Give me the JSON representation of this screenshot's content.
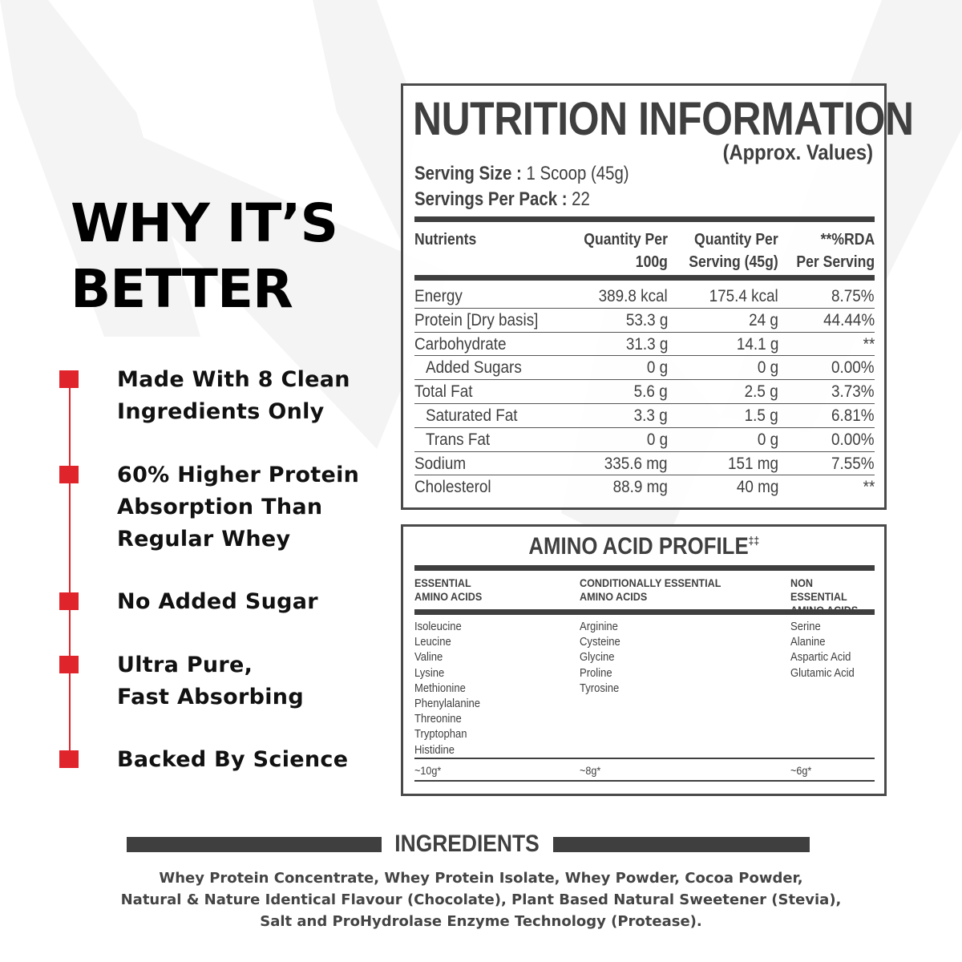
{
  "benefits_section": {
    "title": "WHY IT’S BETTER",
    "items": [
      {
        "text": "Made With 8 Clean\nIngredients Only"
      },
      {
        "text": "60% Higher Protein\nAbsorption Than\nRegular Whey"
      },
      {
        "text": "No Added Sugar"
      },
      {
        "text": "Ultra Pure,\nFast Absorbing"
      },
      {
        "text": "Backed By Science"
      }
    ],
    "accent_color": "#e0242c"
  },
  "nutrition": {
    "title": "NUTRITION INFORMATION",
    "subtitle": "(Approx. Values)",
    "serving_size_label": "Serving Size :",
    "serving_size_value": " 1 Scoop (45g)",
    "servings_per_pack_label": "Servings Per Pack :",
    "servings_per_pack_value": " 22",
    "columns": {
      "nutrients": "Nutrients",
      "per_100g": "Quantity Per\n100g",
      "per_serving": "Quantity Per\nServing (45g)",
      "rda": "**%RDA\nPer Serving"
    },
    "rows": [
      {
        "name": "Energy",
        "per_100g": "389.8 kcal",
        "per_serving": "175.4 kcal",
        "rda": "8.75%",
        "indent": false
      },
      {
        "name": "Protein [Dry basis]",
        "per_100g": "53.3 g",
        "per_serving": "24 g",
        "rda": "44.44%",
        "indent": false
      },
      {
        "name": "Carbohydrate",
        "per_100g": "31.3 g",
        "per_serving": "14.1 g",
        "rda": "**",
        "indent": false
      },
      {
        "name": "Added Sugars",
        "per_100g": "0 g",
        "per_serving": "0 g",
        "rda": "0.00%",
        "indent": true
      },
      {
        "name": "Total Fat",
        "per_100g": "5.6 g",
        "per_serving": "2.5 g",
        "rda": "3.73%",
        "indent": false
      },
      {
        "name": "Saturated Fat",
        "per_100g": "3.3 g",
        "per_serving": "1.5 g",
        "rda": "6.81%",
        "indent": true
      },
      {
        "name": "Trans Fat",
        "per_100g": "0 g",
        "per_serving": "0 g",
        "rda": "0.00%",
        "indent": true
      },
      {
        "name": "Sodium",
        "per_100g": "335.6 mg",
        "per_serving": "151 mg",
        "rda": "7.55%",
        "indent": false
      },
      {
        "name": "Cholesterol",
        "per_100g": "88.9 mg",
        "per_serving": "40 mg",
        "rda": "**",
        "indent": false
      }
    ]
  },
  "amino": {
    "title": "AMINO ACID PROFILE",
    "title_mark": "‡‡",
    "groups": [
      {
        "header": "ESSENTIAL\nAMINO ACIDS",
        "items": [
          "Isoleucine",
          "Leucine",
          "Valine",
          "Lysine",
          "Methionine",
          "Phenylalanine",
          "Threonine",
          "Tryptophan",
          "Histidine"
        ],
        "total": "~10g*"
      },
      {
        "header": "CONDITIONALLY  ESSENTIAL\nAMINO ACIDS",
        "items": [
          "Arginine",
          "Cysteine",
          "Glycine",
          "Proline",
          "Tyrosine"
        ],
        "total": "~8g*"
      },
      {
        "header": "NON  ESSENTIAL\nAMINO ACIDS",
        "items": [
          "Serine",
          "Alanine",
          "Aspartic Acid",
          "Glutamic Acid"
        ],
        "total": "~6g*"
      }
    ]
  },
  "ingredients": {
    "title": "INGREDIENTS",
    "lines": [
      "Whey Protein Concentrate, Whey Protein Isolate, Whey Powder, Cocoa Powder,",
      "Natural & Nature Identical Flavour (Chocolate), Plant Based Natural Sweetener (Stevia),",
      "Salt and ProHydrolase Enzyme Technology (Protease)."
    ]
  }
}
